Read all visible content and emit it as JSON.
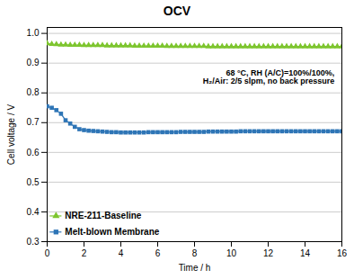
{
  "chart_data": {
    "type": "line",
    "title": "OCV",
    "xlabel": "Time / h",
    "ylabel": "Cell voltage / V",
    "annotation": "68 °C, RH (A/C)=100%/100%,\nH₂/Air: 2/5 slpm, no back pressure",
    "x": [
      0.0,
      0.25,
      0.5,
      0.75,
      1.0,
      1.25,
      1.5,
      1.75,
      2.0,
      2.25,
      2.5,
      2.75,
      3.0,
      3.25,
      3.5,
      3.75,
      4.0,
      4.25,
      4.5,
      4.75,
      5.0,
      5.25,
      5.5,
      5.75,
      6.0,
      6.25,
      6.5,
      6.75,
      7.0,
      7.25,
      7.5,
      7.75,
      8.0,
      8.25,
      8.5,
      8.75,
      9.0,
      9.25,
      9.5,
      9.75,
      10.0,
      10.25,
      10.5,
      10.75,
      11.0,
      11.25,
      11.5,
      11.75,
      12.0,
      12.25,
      12.5,
      12.75,
      13.0,
      13.25,
      13.5,
      13.75,
      14.0,
      14.25,
      14.5,
      14.75,
      15.0,
      15.25,
      15.5,
      15.75,
      16.0
    ],
    "series": [
      {
        "name": "NRE-211-Baseline",
        "color": "#7DC52E",
        "marker": "triangle",
        "values": [
          0.966,
          0.964,
          0.963,
          0.962,
          0.962,
          0.961,
          0.961,
          0.961,
          0.96,
          0.96,
          0.96,
          0.96,
          0.96,
          0.959,
          0.959,
          0.959,
          0.959,
          0.959,
          0.959,
          0.958,
          0.958,
          0.958,
          0.958,
          0.958,
          0.958,
          0.958,
          0.957,
          0.957,
          0.957,
          0.957,
          0.957,
          0.957,
          0.957,
          0.957,
          0.957,
          0.956,
          0.956,
          0.956,
          0.956,
          0.956,
          0.956,
          0.956,
          0.956,
          0.956,
          0.956,
          0.956,
          0.956,
          0.956,
          0.956,
          0.956,
          0.956,
          0.956,
          0.956,
          0.956,
          0.956,
          0.956,
          0.956,
          0.956,
          0.956,
          0.956,
          0.956,
          0.956,
          0.956,
          0.956,
          0.956
        ]
      },
      {
        "name": "Melt-blown Membrane",
        "color": "#2E75B6",
        "marker": "square",
        "values": [
          0.755,
          0.75,
          0.742,
          0.73,
          0.708,
          0.697,
          0.686,
          0.678,
          0.675,
          0.673,
          0.672,
          0.671,
          0.67,
          0.669,
          0.668,
          0.668,
          0.667,
          0.667,
          0.667,
          0.667,
          0.667,
          0.667,
          0.668,
          0.668,
          0.668,
          0.668,
          0.668,
          0.668,
          0.668,
          0.669,
          0.669,
          0.669,
          0.669,
          0.669,
          0.669,
          0.67,
          0.67,
          0.67,
          0.67,
          0.67,
          0.67,
          0.67,
          0.671,
          0.671,
          0.671,
          0.671,
          0.671,
          0.671,
          0.671,
          0.671,
          0.671,
          0.671,
          0.671,
          0.671,
          0.671,
          0.671,
          0.671,
          0.671,
          0.671,
          0.671,
          0.671,
          0.671,
          0.671,
          0.671,
          0.671
        ]
      }
    ],
    "xlim": [
      0,
      16
    ],
    "ylim": [
      0.3,
      1.02
    ],
    "xticks": [
      0,
      2,
      4,
      6,
      8,
      10,
      12,
      14,
      16
    ],
    "yticks": [
      0.3,
      0.4,
      0.5,
      0.6,
      0.7,
      0.8,
      0.9,
      {
        "value": 1.0,
        "label": "1.0"
      }
    ],
    "grid": "y",
    "legend": "lower left"
  }
}
